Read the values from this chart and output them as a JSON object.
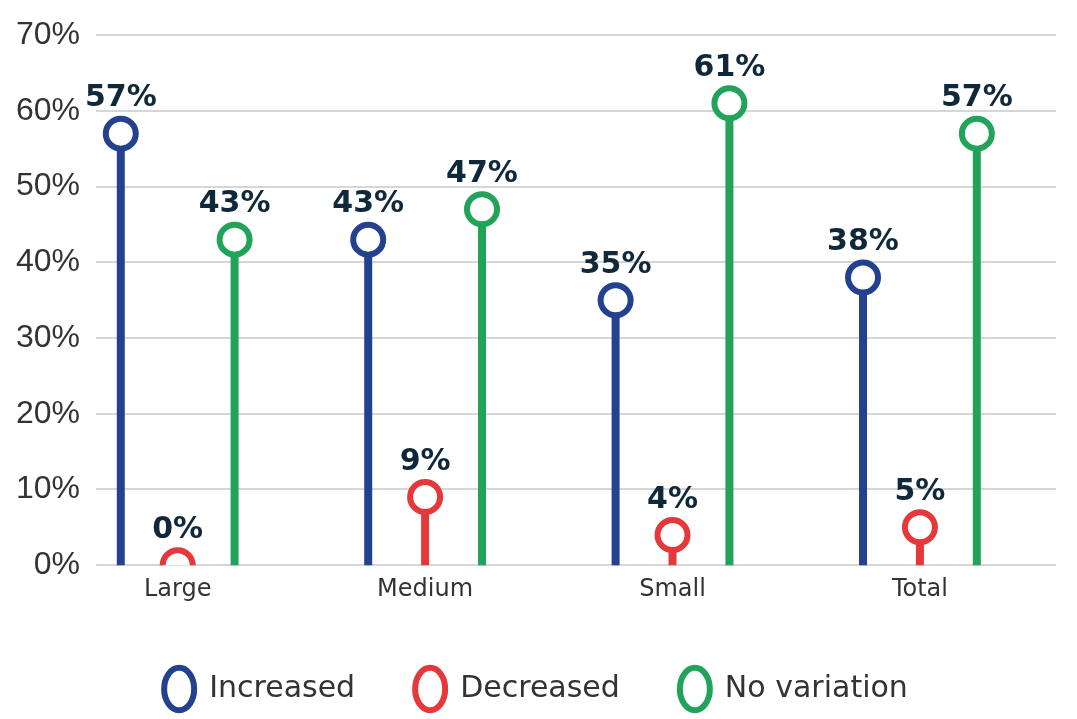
{
  "chart_data": {
    "type": "lollipop",
    "categories": [
      "Large",
      "Medium",
      "Small",
      "Total"
    ],
    "series": [
      {
        "name": "Increased",
        "color": "#24418f",
        "values": [
          57,
          43,
          35,
          38
        ],
        "value_labels": [
          "57%",
          "43%",
          "35%",
          "38%"
        ]
      },
      {
        "name": "Decreased",
        "color": "#e5383b",
        "values": [
          0,
          9,
          4,
          5
        ],
        "value_labels": [
          "0%",
          "9%",
          "4%",
          "5%"
        ]
      },
      {
        "name": "No variation",
        "color": "#22a35a",
        "values": [
          43,
          47,
          61,
          57
        ],
        "value_labels": [
          "43%",
          "47%",
          "61%",
          "57%"
        ]
      }
    ],
    "ylim": [
      0,
      70
    ],
    "yticks": [
      {
        "value": 0,
        "label": "0%"
      },
      {
        "value": 10,
        "label": "10%"
      },
      {
        "value": 20,
        "label": "20%"
      },
      {
        "value": 30,
        "label": "30%"
      },
      {
        "value": 40,
        "label": "40%"
      },
      {
        "value": 50,
        "label": "50%"
      },
      {
        "value": 60,
        "label": "60%"
      },
      {
        "value": 70,
        "label": "70%"
      }
    ],
    "grid": "y",
    "legend": "bottom",
    "marker": "circle"
  }
}
